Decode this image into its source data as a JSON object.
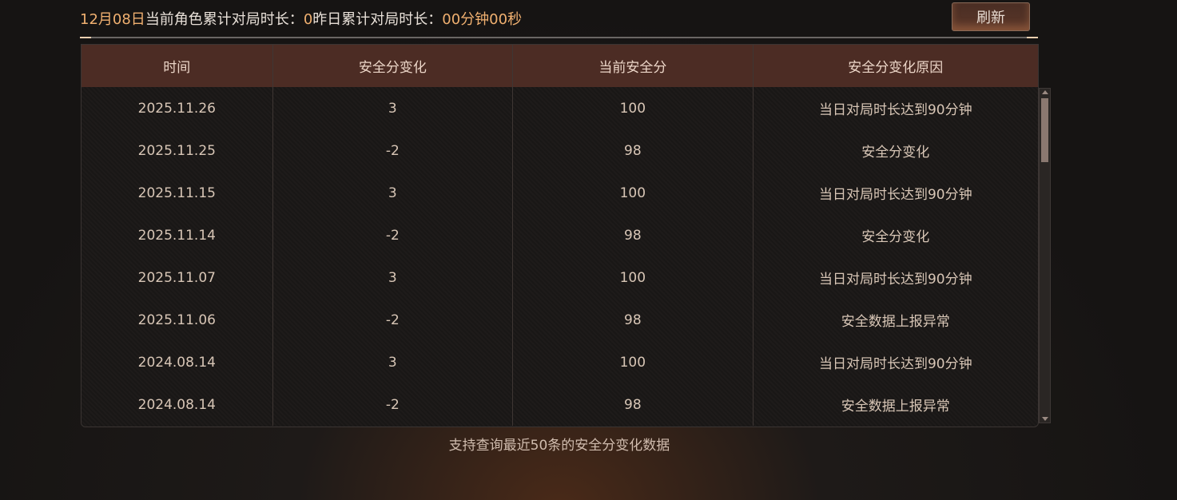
{
  "header": {
    "date": "12月08日",
    "label1": "当前角色累计对局时长：",
    "value1": "0",
    "label2": "昨日累计对局时长：",
    "value2": "00分钟00秒"
  },
  "refresh_label": "刷新",
  "table": {
    "columns": [
      "时间",
      "安全分变化",
      "当前安全分",
      "安全分变化原因"
    ],
    "rows": [
      [
        "2025.11.26",
        "3",
        "100",
        "当日对局时长达到90分钟"
      ],
      [
        "2025.11.25",
        "-2",
        "98",
        "安全分变化"
      ],
      [
        "2025.11.15",
        "3",
        "100",
        "当日对局时长达到90分钟"
      ],
      [
        "2025.11.14",
        "-2",
        "98",
        "安全分变化"
      ],
      [
        "2025.11.07",
        "3",
        "100",
        "当日对局时长达到90分钟"
      ],
      [
        "2025.11.06",
        "-2",
        "98",
        "安全数据上报异常"
      ],
      [
        "2024.08.14",
        "3",
        "100",
        "当日对局时长达到90分钟"
      ],
      [
        "2024.08.14",
        "-2",
        "98",
        "安全数据上报异常"
      ]
    ]
  },
  "footer": "支持查询最近50条的安全分变化数据",
  "colors": {
    "accent": "#f0b070",
    "header_bg": "#4c2c24"
  }
}
